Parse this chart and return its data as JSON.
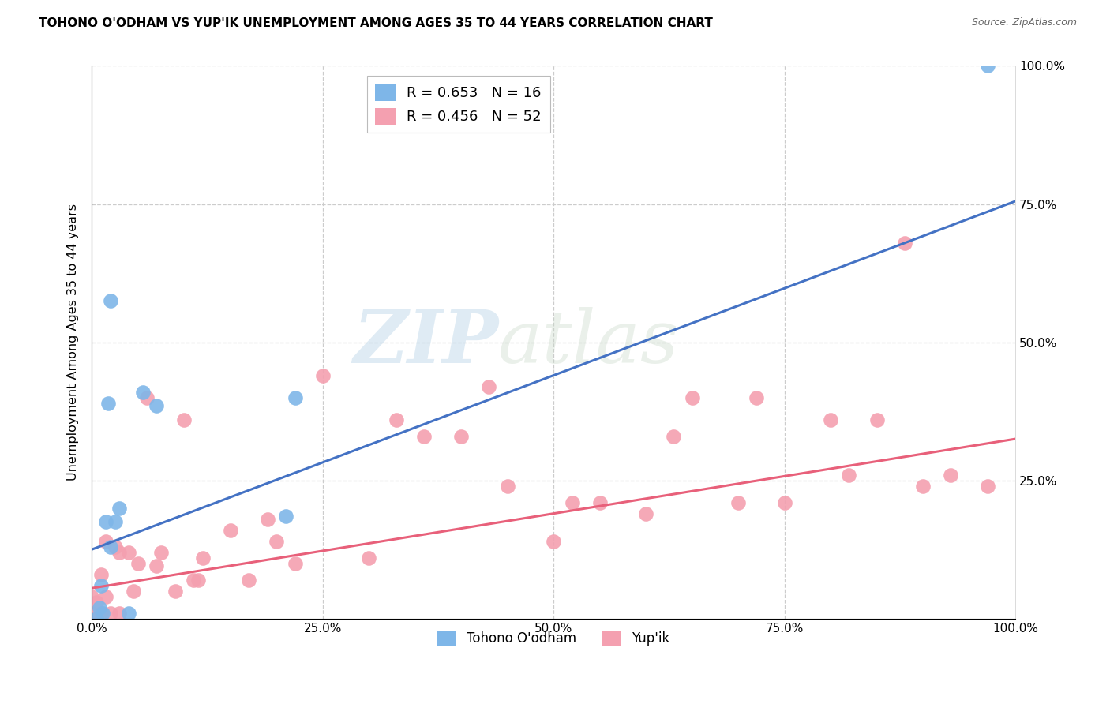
{
  "title": "TOHONO O'ODHAM VS YUP'IK UNEMPLOYMENT AMONG AGES 35 TO 44 YEARS CORRELATION CHART",
  "source": "Source: ZipAtlas.com",
  "ylabel": "Unemployment Among Ages 35 to 44 years",
  "xlim": [
    0,
    1.0
  ],
  "ylim": [
    0,
    1.0
  ],
  "xtick_values": [
    0.0,
    0.25,
    0.5,
    0.75,
    1.0
  ],
  "xtick_labels": [
    "0.0%",
    "25.0%",
    "50.0%",
    "75.0%",
    "100.0%"
  ],
  "background_color": "#ffffff",
  "grid_color": "#cccccc",
  "tohono_color": "#7eb6e8",
  "yupik_color": "#f4a0b0",
  "tohono_line_color": "#4472c4",
  "yupik_line_color": "#e8607a",
  "watermark_zip": "ZIP",
  "watermark_atlas": "atlas",
  "legend_R_tohono": "R = 0.653",
  "legend_N_tohono": "N = 16",
  "legend_R_yupik": "R = 0.456",
  "legend_N_yupik": "N = 52",
  "legend_label_tohono": "Tohono O'odham",
  "legend_label_yupik": "Yup'ik",
  "tohono_x": [
    0.005,
    0.008,
    0.01,
    0.012,
    0.015,
    0.018,
    0.02,
    0.025,
    0.03,
    0.04,
    0.055,
    0.07,
    0.02,
    0.21,
    0.22,
    0.97
  ],
  "tohono_y": [
    0.0,
    0.02,
    0.06,
    0.01,
    0.175,
    0.39,
    0.13,
    0.175,
    0.2,
    0.01,
    0.41,
    0.385,
    0.575,
    0.185,
    0.4,
    1.0
  ],
  "yupik_x": [
    0.0,
    0.0,
    0.0,
    0.005,
    0.005,
    0.01,
    0.01,
    0.015,
    0.015,
    0.02,
    0.025,
    0.03,
    0.03,
    0.04,
    0.045,
    0.05,
    0.06,
    0.07,
    0.075,
    0.09,
    0.1,
    0.11,
    0.115,
    0.12,
    0.15,
    0.17,
    0.19,
    0.2,
    0.22,
    0.25,
    0.3,
    0.33,
    0.36,
    0.4,
    0.43,
    0.45,
    0.5,
    0.52,
    0.55,
    0.6,
    0.63,
    0.65,
    0.7,
    0.72,
    0.75,
    0.8,
    0.82,
    0.85,
    0.88,
    0.9,
    0.93,
    0.97
  ],
  "yupik_y": [
    0.0,
    0.01,
    0.04,
    0.0,
    0.03,
    0.01,
    0.08,
    0.04,
    0.14,
    0.01,
    0.13,
    0.01,
    0.12,
    0.12,
    0.05,
    0.1,
    0.4,
    0.095,
    0.12,
    0.05,
    0.36,
    0.07,
    0.07,
    0.11,
    0.16,
    0.07,
    0.18,
    0.14,
    0.1,
    0.44,
    0.11,
    0.36,
    0.33,
    0.33,
    0.42,
    0.24,
    0.14,
    0.21,
    0.21,
    0.19,
    0.33,
    0.4,
    0.21,
    0.4,
    0.21,
    0.36,
    0.26,
    0.36,
    0.68,
    0.24,
    0.26,
    0.24
  ],
  "tohono_line_x0": 0.0,
  "tohono_line_y0": 0.125,
  "tohono_line_x1": 1.0,
  "tohono_line_y1": 0.755,
  "yupik_line_x0": 0.0,
  "yupik_line_y0": 0.055,
  "yupik_line_x1": 1.0,
  "yupik_line_y1": 0.325
}
